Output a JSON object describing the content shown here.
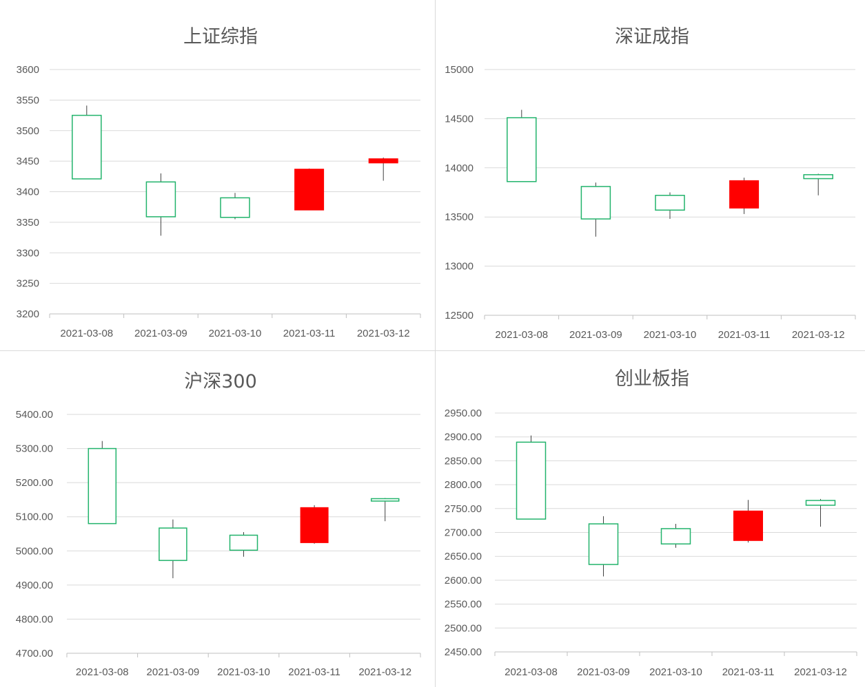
{
  "colors": {
    "up": "#21b36b",
    "down": "#ff0000",
    "grid": "#d9d9d9",
    "text": "#595959"
  },
  "chart_data": [
    {
      "type": "candlestick",
      "title": "上证综指",
      "categories": [
        "2021-03-08",
        "2021-03-09",
        "2021-03-10",
        "2021-03-11",
        "2021-03-12"
      ],
      "yticks": [
        "3200",
        "3250",
        "3300",
        "3350",
        "3400",
        "3450",
        "3500",
        "3550",
        "3600"
      ],
      "ylim": [
        3200,
        3600
      ],
      "candles": [
        {
          "open": 3421,
          "close": 3525,
          "high": 3541,
          "low": 3421,
          "up": true
        },
        {
          "open": 3359,
          "close": 3416,
          "high": 3430,
          "low": 3328,
          "up": true
        },
        {
          "open": 3358,
          "close": 3390,
          "high": 3398,
          "low": 3355,
          "up": true
        },
        {
          "open": 3437,
          "close": 3370,
          "high": 3438,
          "low": 3370,
          "up": false
        },
        {
          "open": 3454,
          "close": 3447,
          "high": 3456,
          "low": 3418,
          "up": false
        }
      ]
    },
    {
      "type": "candlestick",
      "title": "深证成指",
      "categories": [
        "2021-03-08",
        "2021-03-09",
        "2021-03-10",
        "2021-03-11",
        "2021-03-12"
      ],
      "yticks": [
        "12500",
        "13000",
        "13500",
        "14000",
        "14500",
        "15000"
      ],
      "ylim": [
        12500,
        15000
      ],
      "candles": [
        {
          "open": 13860,
          "close": 14510,
          "high": 14590,
          "low": 13860,
          "up": true
        },
        {
          "open": 13480,
          "close": 13810,
          "high": 13850,
          "low": 13300,
          "up": true
        },
        {
          "open": 13570,
          "close": 13720,
          "high": 13750,
          "low": 13480,
          "up": true
        },
        {
          "open": 13870,
          "close": 13590,
          "high": 13900,
          "low": 13530,
          "up": false
        },
        {
          "open": 13890,
          "close": 13930,
          "high": 13940,
          "low": 13720,
          "up": true
        }
      ]
    },
    {
      "type": "candlestick",
      "title": "沪深300",
      "categories": [
        "2021-03-08",
        "2021-03-09",
        "2021-03-10",
        "2021-03-11",
        "2021-03-12"
      ],
      "yticks": [
        "4700.00",
        "4800.00",
        "4900.00",
        "5000.00",
        "5100.00",
        "5200.00",
        "5300.00",
        "5400.00"
      ],
      "ylim": [
        4700,
        5400
      ],
      "candles": [
        {
          "open": 5080,
          "close": 5300,
          "high": 5322,
          "low": 5080,
          "up": true
        },
        {
          "open": 4972,
          "close": 5067,
          "high": 5092,
          "low": 4920,
          "up": true
        },
        {
          "open": 5002,
          "close": 5046,
          "high": 5055,
          "low": 4983,
          "up": true
        },
        {
          "open": 5127,
          "close": 5024,
          "high": 5134,
          "low": 5021,
          "up": false
        },
        {
          "open": 5146,
          "close": 5153,
          "high": 5155,
          "low": 5087,
          "up": true
        }
      ]
    },
    {
      "type": "candlestick",
      "title": "创业板指",
      "categories": [
        "2021-03-08",
        "2021-03-09",
        "2021-03-10",
        "2021-03-11",
        "2021-03-12"
      ],
      "yticks": [
        "2450.00",
        "2500.00",
        "2550.00",
        "2600.00",
        "2650.00",
        "2700.00",
        "2750.00",
        "2800.00",
        "2850.00",
        "2900.00",
        "2950.00"
      ],
      "ylim": [
        2450,
        2950
      ],
      "candles": [
        {
          "open": 2728,
          "close": 2889,
          "high": 2903,
          "low": 2728,
          "up": true
        },
        {
          "open": 2633,
          "close": 2718,
          "high": 2734,
          "low": 2608,
          "up": true
        },
        {
          "open": 2676,
          "close": 2708,
          "high": 2718,
          "low": 2668,
          "up": true
        },
        {
          "open": 2745,
          "close": 2683,
          "high": 2768,
          "low": 2679,
          "up": false
        },
        {
          "open": 2757,
          "close": 2767,
          "high": 2770,
          "low": 2712,
          "up": true
        }
      ]
    }
  ]
}
